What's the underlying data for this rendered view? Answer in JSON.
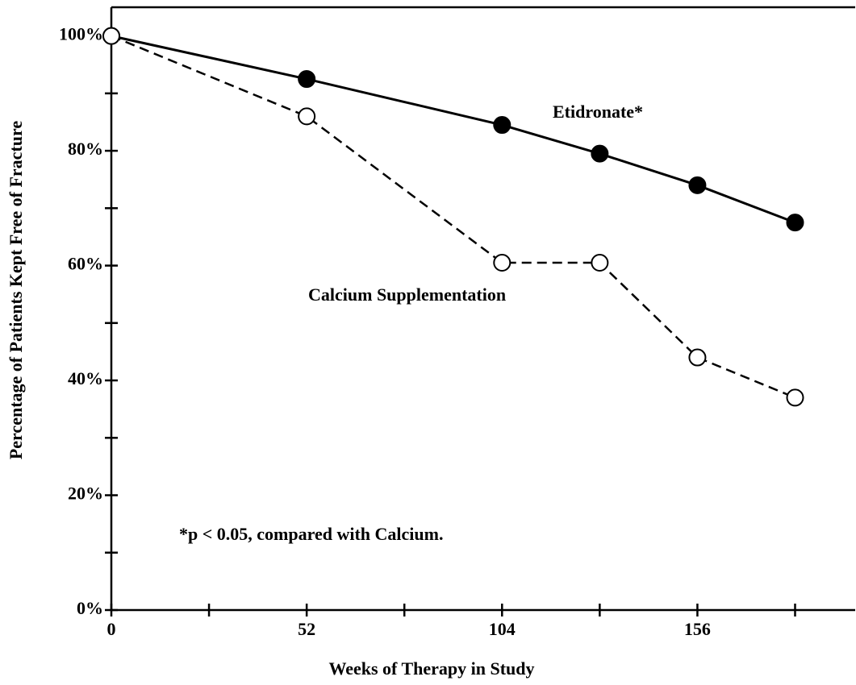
{
  "chart_data": {
    "type": "line",
    "xlabel": "Weeks of Therapy in Study",
    "ylabel": "Percentage of Patients Kept Free of Fracture",
    "xlim": [
      0,
      198
    ],
    "ylim": [
      0,
      105
    ],
    "xticks": [
      0,
      52,
      104,
      156
    ],
    "xminor": [
      26,
      78,
      130,
      182
    ],
    "yticks": [
      {
        "value": 0,
        "label": "0%"
      },
      {
        "value": 20,
        "label": "20%"
      },
      {
        "value": 40,
        "label": "40%"
      },
      {
        "value": 60,
        "label": "60%"
      },
      {
        "value": 80,
        "label": "80%"
      },
      {
        "value": 100,
        "label": "100%"
      }
    ],
    "yminor": [
      10,
      30,
      50,
      70,
      90
    ],
    "grid": false,
    "series": [
      {
        "name": "Etidronate*",
        "color": "#000000",
        "marker": "filled",
        "dashed": false,
        "x": [
          0,
          52,
          104,
          130,
          156,
          182
        ],
        "values": [
          100,
          92.5,
          84.5,
          79.5,
          74,
          67.5
        ]
      },
      {
        "name": "Calcium Supplementation",
        "color": "#000000",
        "marker": "open",
        "dashed": true,
        "x": [
          0,
          52,
          104,
          130,
          156,
          182
        ],
        "values": [
          100,
          86,
          60.5,
          60.5,
          44,
          37
        ]
      }
    ],
    "annotations": [
      "*p < 0.05, compared with Calcium."
    ]
  }
}
